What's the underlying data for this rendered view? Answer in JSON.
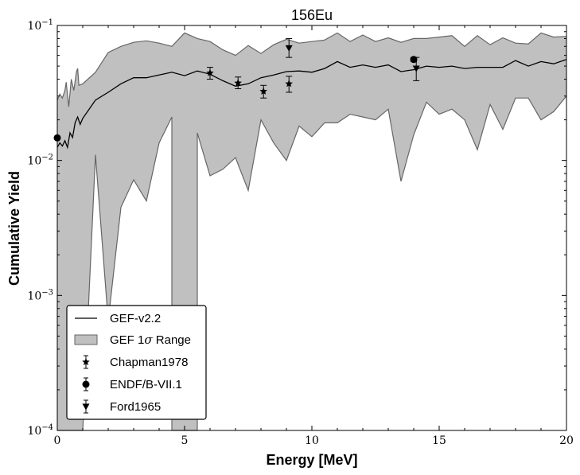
{
  "chart_data": {
    "type": "line",
    "title": "156Eu",
    "xlabel": "Energy [MeV]",
    "ylabel": "Cumulative Yield",
    "xlim": [
      0,
      20
    ],
    "ylim": [
      0.0001,
      0.1
    ],
    "yscale": "log",
    "x_ticks": [
      0,
      5,
      10,
      15,
      20
    ],
    "x_tick_labels": [
      "0",
      "5",
      "10",
      "15",
      "20"
    ],
    "y_ticks": [
      0.0001,
      0.001,
      0.01,
      0.1
    ],
    "y_tick_labels": [
      {
        "base": "10",
        "exp": "−4"
      },
      {
        "base": "10",
        "exp": "−3"
      },
      {
        "base": "10",
        "exp": "−2"
      },
      {
        "base": "10",
        "exp": "−1"
      }
    ],
    "grid": false,
    "legend_position": "lower-left",
    "band": {
      "name": "GEF 1σ Range",
      "legend_base": "GEF 1",
      "legend_symbol": "σ",
      "legend_tail": " Range",
      "fill": "#c0c0c0",
      "edge": "#666666",
      "upper": [
        [
          0.0,
          0.028
        ],
        [
          0.1,
          0.031
        ],
        [
          0.2,
          0.029
        ],
        [
          0.3,
          0.033
        ],
        [
          0.35,
          0.038
        ],
        [
          0.45,
          0.025
        ],
        [
          0.55,
          0.04
        ],
        [
          0.65,
          0.033
        ],
        [
          0.75,
          0.045
        ],
        [
          0.8,
          0.048
        ],
        [
          0.85,
          0.036
        ],
        [
          1.0,
          0.037
        ],
        [
          1.5,
          0.045
        ],
        [
          2.0,
          0.063
        ],
        [
          2.5,
          0.07
        ],
        [
          3.0,
          0.075
        ],
        [
          3.5,
          0.077
        ],
        [
          4.0,
          0.074
        ],
        [
          4.5,
          0.07
        ],
        [
          5.0,
          0.088
        ],
        [
          5.5,
          0.08
        ],
        [
          6.0,
          0.076
        ],
        [
          6.5,
          0.066
        ],
        [
          7.0,
          0.06
        ],
        [
          7.5,
          0.071
        ],
        [
          8.0,
          0.062
        ],
        [
          8.5,
          0.072
        ],
        [
          9.0,
          0.079
        ],
        [
          9.5,
          0.074
        ],
        [
          10.0,
          0.076
        ],
        [
          10.5,
          0.078
        ],
        [
          11.0,
          0.088
        ],
        [
          11.5,
          0.076
        ],
        [
          12.0,
          0.085
        ],
        [
          12.5,
          0.076
        ],
        [
          13.0,
          0.081
        ],
        [
          13.5,
          0.075
        ],
        [
          14.0,
          0.08
        ],
        [
          14.5,
          0.08
        ],
        [
          15.0,
          0.082
        ],
        [
          15.5,
          0.084
        ],
        [
          16.0,
          0.07
        ],
        [
          16.5,
          0.084
        ],
        [
          17.0,
          0.072
        ],
        [
          17.5,
          0.081
        ],
        [
          18.0,
          0.074
        ],
        [
          18.5,
          0.073
        ],
        [
          19.0,
          0.088
        ],
        [
          19.5,
          0.082
        ],
        [
          20.0,
          0.083
        ]
      ],
      "lower": [
        [
          0.0,
          0.0001
        ],
        [
          0.5,
          0.0001
        ],
        [
          1.0,
          0.0001
        ],
        [
          1.5,
          0.011
        ],
        [
          2.0,
          0.00065
        ],
        [
          2.5,
          0.0045
        ],
        [
          3.0,
          0.0072
        ],
        [
          3.5,
          0.005
        ],
        [
          4.0,
          0.0135
        ],
        [
          4.5,
          0.021
        ],
        [
          4.5,
          0.0001
        ],
        [
          5.5,
          0.0001
        ],
        [
          5.5,
          0.016
        ],
        [
          6.0,
          0.0077
        ],
        [
          6.5,
          0.0086
        ],
        [
          7.0,
          0.0105
        ],
        [
          7.5,
          0.006
        ],
        [
          8.0,
          0.02
        ],
        [
          8.5,
          0.0135
        ],
        [
          9.0,
          0.01
        ],
        [
          9.5,
          0.018
        ],
        [
          10.0,
          0.015
        ],
        [
          10.5,
          0.019
        ],
        [
          11.0,
          0.019
        ],
        [
          11.5,
          0.022
        ],
        [
          12.0,
          0.021
        ],
        [
          12.5,
          0.02
        ],
        [
          13.0,
          0.024
        ],
        [
          13.5,
          0.007
        ],
        [
          14.0,
          0.0155
        ],
        [
          14.5,
          0.027
        ],
        [
          15.0,
          0.022
        ],
        [
          15.5,
          0.024
        ],
        [
          16.0,
          0.02
        ],
        [
          16.5,
          0.012
        ],
        [
          17.0,
          0.026
        ],
        [
          17.5,
          0.017
        ],
        [
          18.0,
          0.029
        ],
        [
          18.5,
          0.029
        ],
        [
          19.0,
          0.02
        ],
        [
          19.5,
          0.023
        ],
        [
          20.0,
          0.03
        ]
      ]
    },
    "series": [
      {
        "name": "GEF-v2.2",
        "style": "line",
        "color": "#000000",
        "points": [
          [
            0.0,
            0.0125
          ],
          [
            0.1,
            0.0135
          ],
          [
            0.2,
            0.0128
          ],
          [
            0.3,
            0.014
          ],
          [
            0.4,
            0.0125
          ],
          [
            0.5,
            0.016
          ],
          [
            0.6,
            0.0148
          ],
          [
            0.7,
            0.019
          ],
          [
            0.8,
            0.021
          ],
          [
            0.9,
            0.0185
          ],
          [
            1.0,
            0.0205
          ],
          [
            1.5,
            0.028
          ],
          [
            2.0,
            0.032
          ],
          [
            2.5,
            0.037
          ],
          [
            3.0,
            0.041
          ],
          [
            3.5,
            0.041
          ],
          [
            4.0,
            0.043
          ],
          [
            4.5,
            0.045
          ],
          [
            5.0,
            0.0425
          ],
          [
            5.5,
            0.046
          ],
          [
            6.0,
            0.0435
          ],
          [
            6.5,
            0.039
          ],
          [
            7.0,
            0.0355
          ],
          [
            7.5,
            0.037
          ],
          [
            8.0,
            0.041
          ],
          [
            8.5,
            0.043
          ],
          [
            9.0,
            0.0455
          ],
          [
            9.5,
            0.046
          ],
          [
            10.0,
            0.045
          ],
          [
            10.5,
            0.048
          ],
          [
            11.0,
            0.054
          ],
          [
            11.5,
            0.049
          ],
          [
            12.0,
            0.051
          ],
          [
            12.5,
            0.049
          ],
          [
            13.0,
            0.051
          ],
          [
            13.5,
            0.0455
          ],
          [
            14.0,
            0.047
          ],
          [
            14.5,
            0.05
          ],
          [
            15.0,
            0.049
          ],
          [
            15.5,
            0.05
          ],
          [
            16.0,
            0.048
          ],
          [
            16.5,
            0.049
          ],
          [
            17.0,
            0.049
          ],
          [
            17.5,
            0.049
          ],
          [
            18.0,
            0.055
          ],
          [
            18.5,
            0.05
          ],
          [
            19.0,
            0.054
          ],
          [
            19.5,
            0.052
          ],
          [
            20.0,
            0.056
          ]
        ]
      },
      {
        "name": "Chapman1978",
        "style": "marker",
        "marker": "star",
        "color": "#000000",
        "points": [
          {
            "x": 6.0,
            "y": 0.0445,
            "lo": 0.04,
            "hi": 0.049
          },
          {
            "x": 7.1,
            "y": 0.0375,
            "lo": 0.034,
            "hi": 0.0415
          },
          {
            "x": 8.1,
            "y": 0.0325,
            "lo": 0.029,
            "hi": 0.036
          },
          {
            "x": 9.1,
            "y": 0.037,
            "lo": 0.032,
            "hi": 0.042
          }
        ]
      },
      {
        "name": "ENDF/B-VII.1",
        "style": "marker",
        "marker": "circle",
        "color": "#000000",
        "points": [
          {
            "x": 0.0,
            "y": 0.0147,
            "lo": 0.0145,
            "hi": 0.0149
          },
          {
            "x": 14.0,
            "y": 0.056,
            "lo": 0.054,
            "hi": 0.058
          }
        ]
      },
      {
        "name": "Ford1965",
        "style": "marker",
        "marker": "triangle-down",
        "color": "#000000",
        "points": [
          {
            "x": 9.1,
            "y": 0.068,
            "lo": 0.058,
            "hi": 0.08
          },
          {
            "x": 14.1,
            "y": 0.048,
            "lo": 0.039,
            "hi": 0.058
          }
        ]
      }
    ],
    "legend_order": [
      "GEF-v2.2",
      "GEF 1σ Range",
      "Chapman1978",
      "ENDF/B-VII.1",
      "Ford1965"
    ]
  }
}
